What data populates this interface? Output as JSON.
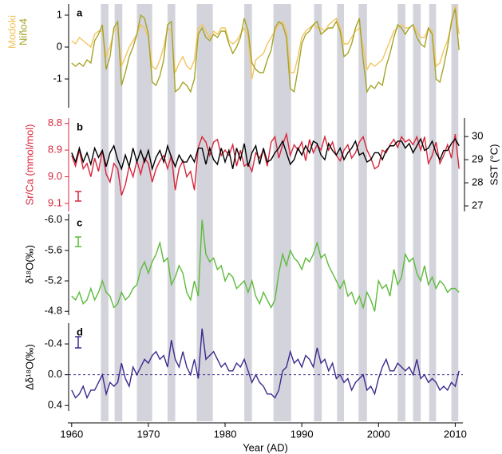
{
  "highlight_periods": [
    [
      1963.8,
      1964.8
    ],
    [
      1965.6,
      1966.6
    ],
    [
      1968.5,
      1970.5
    ],
    [
      1972.5,
      1973.5
    ],
    [
      1976.3,
      1978.4
    ],
    [
      1982.5,
      1983.5
    ],
    [
      1986.3,
      1988.6
    ],
    [
      1991.6,
      1992.6
    ],
    [
      1994.6,
      1995.5
    ],
    [
      1997.4,
      1998.5
    ],
    [
      2002.5,
      2003.5
    ],
    [
      2004.5,
      2005.5
    ],
    [
      2006.6,
      2007.5
    ],
    [
      2009.5,
      2010.4
    ]
  ],
  "chart_data": [
    {
      "type": "line",
      "panel_label": "a",
      "x": [
        1960,
        1960.5,
        1961,
        1961.5,
        1962,
        1962.5,
        1963,
        1963.5,
        1964,
        1964.5,
        1965,
        1965.5,
        1966,
        1966.5,
        1967,
        1967.5,
        1968,
        1968.5,
        1969,
        1969.5,
        1970,
        1970.5,
        1971,
        1971.5,
        1972,
        1972.5,
        1973,
        1973.5,
        1974,
        1974.5,
        1975,
        1975.5,
        1976,
        1976.5,
        1977,
        1977.5,
        1978,
        1978.5,
        1979,
        1979.5,
        1980,
        1980.5,
        1981,
        1981.5,
        1982,
        1982.5,
        1983,
        1983.5,
        1984,
        1984.5,
        1985,
        1985.5,
        1986,
        1986.5,
        1987,
        1987.5,
        1988,
        1988.5,
        1989,
        1989.5,
        1990,
        1990.5,
        1991,
        1991.5,
        1992,
        1992.5,
        1993,
        1993.5,
        1994,
        1994.5,
        1995,
        1995.5,
        1996,
        1996.5,
        1997,
        1997.5,
        1998,
        1998.5,
        1999,
        1999.5,
        2000,
        2000.5,
        2001,
        2001.5,
        2002,
        2002.5,
        2003,
        2003.5,
        2004,
        2004.5,
        2005,
        2005.5,
        2006,
        2006.5,
        2007,
        2007.5,
        2008,
        2008.5,
        2009,
        2009.5,
        2010,
        2010.5
      ],
      "ylim": [
        -1.9,
        1.35
      ],
      "yticks": [
        -1,
        0,
        1
      ],
      "series": [
        {
          "name": "Modoki",
          "color": "#f2c45e",
          "values": [
            0.2,
            0.1,
            0.3,
            0.2,
            0.1,
            0.0,
            0.4,
            0.5,
            0.5,
            -0.3,
            0.0,
            0.5,
            0.6,
            -0.6,
            -0.3,
            0.0,
            0.2,
            0.4,
            0.7,
            0.6,
            0.3,
            -0.6,
            -0.7,
            -0.4,
            0.0,
            0.6,
            0.5,
            -0.8,
            -0.5,
            -0.3,
            -0.6,
            -0.7,
            -0.4,
            0.6,
            0.7,
            0.5,
            0.3,
            0.5,
            0.4,
            0.6,
            0.6,
            0.2,
            0.1,
            0.2,
            0.4,
            0.6,
            0.3,
            -1.0,
            -0.4,
            -0.3,
            -0.2,
            0.1,
            0.3,
            0.5,
            0.7,
            0.8,
            0.5,
            -0.8,
            -0.8,
            -0.3,
            0.3,
            0.5,
            0.6,
            0.7,
            0.6,
            0.6,
            0.5,
            0.7,
            0.8,
            0.9,
            0.6,
            0.1,
            0.1,
            0.3,
            0.5,
            0.6,
            0.0,
            -0.7,
            -0.5,
            -0.6,
            -0.5,
            -0.4,
            -0.1,
            0.2,
            0.5,
            0.6,
            0.7,
            0.6,
            0.6,
            0.7,
            0.5,
            0.3,
            0.3,
            0.6,
            0.5,
            -0.6,
            -0.5,
            -0.1,
            0.2,
            0.7,
            1.3,
            0.4
          ]
        },
        {
          "name": "Niño4",
          "color": "#a5a427",
          "values": [
            -0.5,
            -0.6,
            -0.5,
            -0.6,
            -0.4,
            -0.5,
            0.2,
            0.4,
            0.7,
            -0.7,
            -0.3,
            0.6,
            0.8,
            -1.2,
            -0.8,
            -0.3,
            0.0,
            0.4,
            1.0,
            0.9,
            0.4,
            -1.1,
            -1.2,
            -0.9,
            -0.4,
            0.7,
            0.8,
            -1.4,
            -1.3,
            -1.1,
            -1.2,
            -1.4,
            -1.0,
            0.4,
            0.6,
            0.3,
            0.2,
            0.4,
            0.3,
            0.5,
            0.5,
            0.1,
            -0.2,
            0.0,
            0.3,
            0.9,
            0.5,
            -0.5,
            -0.7,
            -0.8,
            -0.8,
            -0.4,
            -0.1,
            0.6,
            0.8,
            0.7,
            0.3,
            -1.3,
            -1.4,
            -0.7,
            0.1,
            0.4,
            0.5,
            0.7,
            0.8,
            0.4,
            0.5,
            0.6,
            0.6,
            0.8,
            0.5,
            -0.3,
            -0.2,
            0.1,
            0.6,
            0.9,
            -0.4,
            -1.4,
            -1.2,
            -1.3,
            -1.1,
            -1.2,
            -0.6,
            -0.2,
            0.3,
            0.7,
            0.6,
            0.4,
            0.6,
            0.7,
            0.3,
            0.1,
            0.0,
            0.6,
            0.4,
            -1.0,
            -1.1,
            -0.6,
            0.0,
            0.8,
            1.2,
            -0.1
          ]
        }
      ]
    },
    {
      "type": "line",
      "panel_label": "b",
      "ylabel": "Sr/Ca (mmol/mol)",
      "yaxis_color": "#d7263b",
      "y2label": "SST (°C)",
      "x": [
        1960,
        1960.5,
        1961,
        1961.5,
        1962,
        1962.5,
        1963,
        1963.5,
        1964,
        1964.5,
        1965,
        1965.5,
        1966,
        1966.5,
        1967,
        1967.5,
        1968,
        1968.5,
        1969,
        1969.5,
        1970,
        1970.5,
        1971,
        1971.5,
        1972,
        1972.5,
        1973,
        1973.5,
        1974,
        1974.5,
        1975,
        1975.5,
        1976,
        1976.5,
        1977,
        1977.5,
        1978,
        1978.5,
        1979,
        1979.5,
        1980,
        1980.5,
        1981,
        1981.5,
        1982,
        1982.5,
        1983,
        1983.5,
        1984,
        1984.5,
        1985,
        1985.5,
        1986,
        1986.5,
        1987,
        1987.5,
        1988,
        1988.5,
        1989,
        1989.5,
        1990,
        1990.5,
        1991,
        1991.5,
        1992,
        1992.5,
        1993,
        1993.5,
        1994,
        1994.5,
        1995,
        1995.5,
        1996,
        1996.5,
        1997,
        1997.5,
        1998,
        1998.5,
        1999,
        1999.5,
        2000,
        2000.5,
        2001,
        2001.5,
        2002,
        2002.5,
        2003,
        2003.5,
        2004,
        2004.5,
        2005,
        2005.5,
        2006,
        2006.5,
        2007,
        2007.5,
        2008,
        2008.5,
        2009,
        2009.5,
        2010,
        2010.5
      ],
      "ylim": [
        9.13,
        8.78
      ],
      "yticks": [
        8.8,
        8.9,
        {
          "value": 9,
          "label": "9.0"
        },
        9.1
      ],
      "y2lim": [
        26.76,
        30.8
      ],
      "y2ticks": [
        27,
        28,
        29,
        30
      ],
      "series": [
        {
          "name": "Sr/Ca",
          "color": "#d7263b",
          "values": [
            8.92,
            8.96,
            8.9,
            8.97,
            8.95,
            9.0,
            8.93,
            8.98,
            8.9,
            8.99,
            9.02,
            8.95,
            8.97,
            9.07,
            9.03,
            8.96,
            9.0,
            8.94,
            8.99,
            8.93,
            8.95,
            9.02,
            8.97,
            8.94,
            8.92,
            8.97,
            8.92,
            9.05,
            8.97,
            8.94,
            9.0,
            8.98,
            9.05,
            8.89,
            8.85,
            8.87,
            8.92,
            8.87,
            8.86,
            8.92,
            8.9,
            8.92,
            8.88,
            8.96,
            8.9,
            8.96,
            8.95,
            8.98,
            8.91,
            8.93,
            8.9,
            8.96,
            8.87,
            8.85,
            8.93,
            8.88,
            8.84,
            8.92,
            8.88,
            8.9,
            8.87,
            8.94,
            8.86,
            8.91,
            8.88,
            8.9,
            8.85,
            8.9,
            8.87,
            8.92,
            8.94,
            8.9,
            8.88,
            8.93,
            8.91,
            8.87,
            8.85,
            8.9,
            8.93,
            8.97,
            8.96,
            8.9,
            8.91,
            8.88,
            8.86,
            8.89,
            8.85,
            8.87,
            8.86,
            8.88,
            8.85,
            8.9,
            8.85,
            8.95,
            8.92,
            8.87,
            8.95,
            8.92,
            8.88,
            8.93,
            8.84,
            8.97
          ]
        },
        {
          "name": "SST",
          "color": "#000000",
          "axis": "y2",
          "values": [
            29.3,
            28.9,
            29.5,
            28.9,
            29.3,
            28.8,
            29.5,
            29.1,
            29.4,
            28.7,
            29.3,
            29.6,
            29.0,
            28.6,
            29.2,
            28.7,
            29.5,
            28.9,
            29.4,
            28.9,
            29.4,
            28.6,
            29.1,
            29.4,
            28.9,
            29.6,
            29.1,
            28.7,
            29.2,
            28.9,
            28.9,
            29.2,
            28.9,
            29.5,
            29.5,
            28.8,
            29.5,
            29.0,
            28.8,
            29.5,
            28.9,
            29.4,
            28.6,
            29.5,
            29.0,
            29.7,
            28.7,
            29.3,
            29.6,
            28.8,
            29.5,
            28.9,
            29.0,
            29.3,
            29.5,
            29.8,
            29.3,
            28.8,
            29.0,
            29.5,
            29.2,
            29.6,
            29.3,
            29.8,
            29.7,
            29.2,
            29.0,
            29.7,
            29.4,
            29.2,
            29.5,
            29.0,
            29.3,
            29.5,
            29.8,
            29.2,
            29.3,
            28.9,
            29.0,
            29.3,
            29.3,
            29.0,
            29.4,
            29.6,
            29.6,
            29.8,
            29.8,
            29.5,
            29.7,
            29.3,
            29.6,
            29.9,
            29.4,
            29.5,
            29.8,
            29.3,
            29.0,
            29.4,
            29.4,
            29.7,
            29.9,
            29.6
          ]
        }
      ]
    },
    {
      "type": "line",
      "panel_label": "c",
      "ylabel": "δ¹⁸O(‰)",
      "x": [
        1960,
        1960.5,
        1961,
        1961.5,
        1962,
        1962.5,
        1963,
        1963.5,
        1964,
        1964.5,
        1965,
        1965.5,
        1966,
        1966.5,
        1967,
        1967.5,
        1968,
        1968.5,
        1969,
        1969.5,
        1970,
        1970.5,
        1971,
        1971.5,
        1972,
        1972.5,
        1973,
        1973.5,
        1974,
        1974.5,
        1975,
        1975.5,
        1976,
        1976.5,
        1977,
        1977.5,
        1978,
        1978.5,
        1979,
        1979.5,
        1980,
        1980.5,
        1981,
        1981.5,
        1982,
        1982.5,
        1983,
        1983.5,
        1984,
        1984.5,
        1985,
        1985.5,
        1986,
        1986.5,
        1987,
        1987.5,
        1988,
        1988.5,
        1989,
        1989.5,
        1990,
        1990.5,
        1991,
        1991.5,
        1992,
        1992.5,
        1993,
        1993.5,
        1994,
        1994.5,
        1995,
        1995.5,
        1996,
        1996.5,
        1997,
        1997.5,
        1998,
        1998.5,
        1999,
        1999.5,
        2000,
        2000.5,
        2001,
        2001.5,
        2002,
        2002.5,
        2003,
        2003.5,
        2004,
        2004.5,
        2005,
        2005.5,
        2006,
        2006.5,
        2007,
        2007.5,
        2008,
        2008.5,
        2009,
        2009.5,
        2010,
        2010.5
      ],
      "ylim": [
        -4.75,
        -6.08
      ],
      "yticks": [
        {
          "value": -6,
          "label": "-6.0"
        },
        -5.6,
        -5.2,
        -4.8
      ],
      "series": [
        {
          "name": "δ¹⁸O",
          "color": "#5cbb3a",
          "values": [
            -5.0,
            -4.95,
            -5.05,
            -4.9,
            -4.95,
            -5.1,
            -4.95,
            -5.05,
            -5.2,
            -5.05,
            -5.0,
            -4.85,
            -4.9,
            -5.05,
            -4.95,
            -5.0,
            -5.1,
            -5.15,
            -5.35,
            -5.45,
            -5.3,
            -5.45,
            -5.55,
            -5.7,
            -5.45,
            -5.5,
            -5.15,
            -5.25,
            -5.4,
            -5.3,
            -5.05,
            -4.95,
            -5.2,
            -5.0,
            -6.0,
            -5.55,
            -5.45,
            -5.5,
            -5.35,
            -5.4,
            -5.2,
            -5.3,
            -5.25,
            -5.1,
            -5.15,
            -5.2,
            -5.05,
            -5.2,
            -5.0,
            -4.9,
            -5.05,
            -4.95,
            -4.85,
            -4.95,
            -5.3,
            -5.55,
            -5.4,
            -5.6,
            -5.5,
            -5.45,
            -5.35,
            -5.5,
            -5.45,
            -5.55,
            -5.7,
            -5.5,
            -5.55,
            -5.4,
            -5.3,
            -5.2,
            -5.1,
            -5.2,
            -5.0,
            -5.05,
            -4.9,
            -5.0,
            -4.85,
            -5.05,
            -4.95,
            -4.8,
            -5.2,
            -5.1,
            -5.15,
            -5.0,
            -5.35,
            -5.15,
            -5.25,
            -5.55,
            -5.45,
            -5.5,
            -5.3,
            -5.2,
            -5.4,
            -5.15,
            -5.25,
            -5.1,
            -5.2,
            -5.15,
            -5.05,
            -5.1,
            -5.1,
            -5.05
          ]
        }
      ]
    },
    {
      "type": "line",
      "panel_label": "d",
      "ylabel": "Δδ¹⁸O(‰)",
      "hline": 0,
      "xlabel": "Year (AD)",
      "xlim": [
        1959.5,
        2011
      ],
      "xticks": [
        1960,
        1970,
        1980,
        1990,
        2000,
        2010
      ],
      "x": [
        1960,
        1960.5,
        1961,
        1961.5,
        1962,
        1962.5,
        1963,
        1963.5,
        1964,
        1964.5,
        1965,
        1965.5,
        1966,
        1966.5,
        1967,
        1967.5,
        1968,
        1968.5,
        1969,
        1969.5,
        1970,
        1970.5,
        1971,
        1971.5,
        1972,
        1972.5,
        1973,
        1973.5,
        1974,
        1974.5,
        1975,
        1975.5,
        1976,
        1976.5,
        1977,
        1977.5,
        1978,
        1978.5,
        1979,
        1979.5,
        1980,
        1980.5,
        1981,
        1981.5,
        1982,
        1982.5,
        1983,
        1983.5,
        1984,
        1984.5,
        1985,
        1985.5,
        1986,
        1986.5,
        1987,
        1987.5,
        1988,
        1988.5,
        1989,
        1989.5,
        1990,
        1990.5,
        1991,
        1991.5,
        1992,
        1992.5,
        1993,
        1993.5,
        1994,
        1994.5,
        1995,
        1995.5,
        1996,
        1996.5,
        1997,
        1997.5,
        1998,
        1998.5,
        1999,
        1999.5,
        2000,
        2000.5,
        2001,
        2001.5,
        2002,
        2002.5,
        2003,
        2003.5,
        2004,
        2004.5,
        2005,
        2005.5,
        2006,
        2006.5,
        2007,
        2007.5,
        2008,
        2008.5,
        2009,
        2009.5,
        2010,
        2010.5
      ],
      "ylim": [
        0.47,
        -0.67
      ],
      "yticks": [
        -0.4,
        {
          "value": 0,
          "label": "0.0"
        },
        0.4
      ],
      "series": [
        {
          "name": "Δδ¹⁸O",
          "color": "#3b2a8c",
          "values": [
            0.2,
            0.3,
            0.25,
            0.15,
            0.3,
            0.2,
            0.2,
            0.1,
            0.0,
            0.25,
            0.1,
            0.15,
            0.1,
            -0.15,
            0.05,
            0.15,
            -0.1,
            0.0,
            -0.1,
            -0.2,
            -0.15,
            -0.25,
            -0.3,
            -0.2,
            -0.25,
            -0.1,
            -0.45,
            -0.2,
            -0.1,
            -0.3,
            -0.1,
            0.0,
            -0.2,
            0.05,
            -0.6,
            -0.2,
            -0.25,
            -0.3,
            -0.2,
            -0.1,
            -0.15,
            -0.05,
            -0.05,
            -0.15,
            -0.1,
            -0.2,
            -0.05,
            0.1,
            0.0,
            0.1,
            0.15,
            0.25,
            0.25,
            0.3,
            0.2,
            -0.05,
            -0.1,
            -0.3,
            -0.15,
            -0.2,
            -0.1,
            -0.25,
            -0.2,
            -0.1,
            -0.35,
            -0.15,
            -0.2,
            -0.05,
            -0.15,
            0.05,
            0.0,
            0.1,
            0.05,
            0.2,
            0.1,
            0.05,
            0.0,
            0.2,
            0.15,
            0.25,
            0.05,
            -0.1,
            -0.2,
            -0.05,
            -0.05,
            -0.15,
            -0.1,
            -0.05,
            -0.1,
            0.0,
            -0.2,
            0.05,
            0.0,
            0.1,
            0.05,
            0.1,
            0.2,
            0.15,
            0.2,
            0.1,
            0.15,
            -0.05
          ]
        }
      ]
    }
  ]
}
